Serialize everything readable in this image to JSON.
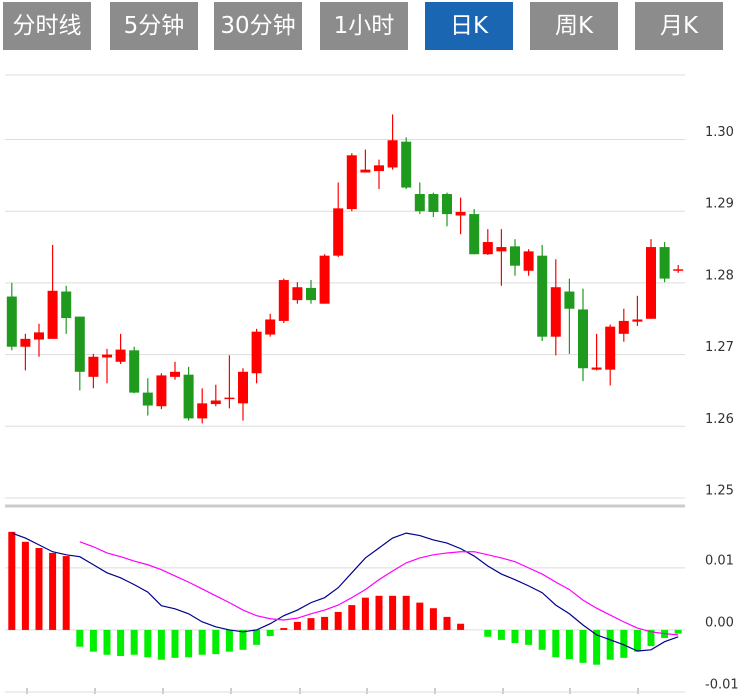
{
  "tabs": [
    "分时线",
    "5分钟",
    "30分钟",
    "1小时",
    "日K",
    "周K",
    "月K"
  ],
  "active_tab": 4,
  "chart_data": [
    {
      "type": "candlestick",
      "up_color": "#ff0000",
      "down_color": "#1f9a1f",
      "open": [
        1.2781,
        1.2711,
        1.2721,
        1.2722,
        1.2788,
        1.2753,
        1.2669,
        1.2696,
        1.269,
        1.2706,
        1.2647,
        1.2628,
        1.2669,
        1.2672,
        1.2611,
        1.2631,
        1.2638,
        1.2632,
        1.2674,
        1.2728,
        1.2747,
        1.2776,
        1.2793,
        1.2771,
        1.2838,
        1.2903,
        1.2954,
        1.2956,
        1.2961,
        1.2997,
        1.2924,
        1.2924,
        1.2924,
        1.2894,
        1.2896,
        1.284,
        1.2844,
        1.2851,
        1.2817,
        1.2838,
        1.2725,
        1.2788,
        1.2763,
        1.2679,
        1.2679,
        1.2729,
        1.2746,
        1.275,
        1.285,
        1.2817
      ],
      "high": [
        1.28,
        1.2729,
        1.2743,
        1.2853,
        1.2796,
        1.2753,
        1.2701,
        1.2708,
        1.2729,
        1.2711,
        1.2667,
        1.2674,
        1.269,
        1.2683,
        1.2653,
        1.2658,
        1.2699,
        1.2681,
        1.2736,
        1.2757,
        1.2806,
        1.2801,
        1.2804,
        1.284,
        1.294,
        1.2981,
        1.2986,
        1.2972,
        1.3035,
        1.3003,
        1.294,
        1.2926,
        1.2926,
        1.2919,
        1.2903,
        1.2875,
        1.2875,
        1.2861,
        1.2847,
        1.2853,
        1.2833,
        1.2806,
        1.2792,
        1.2729,
        1.2742,
        1.2764,
        1.2782,
        1.2861,
        1.2857,
        1.2825
      ],
      "low": [
        1.2706,
        1.2678,
        1.2697,
        1.2722,
        1.2729,
        1.265,
        1.2653,
        1.266,
        1.2687,
        1.2646,
        1.2615,
        1.2624,
        1.2665,
        1.2608,
        1.2604,
        1.2628,
        1.2625,
        1.2608,
        1.266,
        1.2725,
        1.2744,
        1.2771,
        1.2771,
        1.2771,
        1.2836,
        1.29,
        1.2954,
        1.2931,
        1.2958,
        1.2931,
        1.2896,
        1.2892,
        1.2879,
        1.2868,
        1.284,
        1.2839,
        1.2796,
        1.281,
        1.281,
        1.2719,
        1.2699,
        1.2701,
        1.2663,
        1.2678,
        1.2657,
        1.2718,
        1.274,
        1.275,
        1.2801,
        1.2814
      ],
      "close": [
        1.2711,
        1.2722,
        1.2731,
        1.2789,
        1.2751,
        1.2676,
        1.2697,
        1.27,
        1.2707,
        1.2647,
        1.2629,
        1.2671,
        1.2676,
        1.2611,
        1.2632,
        1.2636,
        1.264,
        1.2676,
        1.2732,
        1.2749,
        1.2804,
        1.2794,
        1.2776,
        1.2838,
        1.2904,
        1.2978,
        1.2958,
        1.2964,
        1.2999,
        1.2933,
        1.29,
        1.2899,
        1.2896,
        1.2899,
        1.284,
        1.2857,
        1.285,
        1.2824,
        1.2844,
        1.2725,
        1.2794,
        1.2764,
        1.2681,
        1.2682,
        1.2739,
        1.2747,
        1.2749,
        1.285,
        1.2806,
        1.2819
      ],
      "ylim": [
        1.25,
        1.309
      ],
      "yticks": [
        {
          "value": 1.3,
          "label": "1.30"
        },
        1.29,
        1.28,
        1.27,
        1.26,
        1.25
      ],
      "grid": true
    },
    {
      "type": "macd",
      "up_color": "#ff0000",
      "down_color": "#00ee00",
      "values": [
        0.0158,
        0.0142,
        0.0132,
        0.0124,
        0.0119,
        -0.0027,
        -0.0035,
        -0.004,
        -0.0042,
        -0.004,
        -0.0044,
        -0.0048,
        -0.0045,
        -0.0044,
        -0.004,
        -0.0039,
        -0.0035,
        -0.0032,
        -0.0024,
        -0.001,
        0.0003,
        0.0013,
        0.0019,
        0.0021,
        0.0029,
        0.004,
        0.0052,
        0.0055,
        0.0055,
        0.0055,
        0.0044,
        0.0035,
        0.0021,
        0.001,
        0,
        -0.0011,
        -0.0016,
        -0.0021,
        -0.0024,
        -0.0032,
        -0.0044,
        -0.0047,
        -0.0053,
        -0.0056,
        -0.0048,
        -0.0045,
        -0.0035,
        -0.0026,
        -0.0013,
        -0.0006
      ],
      "series": [
        {
          "color": "#00008c",
          "values": [
            0.0156,
            0.0148,
            0.0137,
            0.0126,
            0.0121,
            0.0118,
            0.0105,
            0.0092,
            0.0084,
            0.0073,
            0.0061,
            0.0039,
            0.0034,
            0.0026,
            0.0013,
            0.0005,
            0,
            -0.0003,
            0,
            0.001,
            0.0023,
            0.0032,
            0.0044,
            0.0052,
            0.0068,
            0.0092,
            0.0116,
            0.0132,
            0.0148,
            0.0156,
            0.0152,
            0.0145,
            0.014,
            0.0131,
            0.0119,
            0.0103,
            0.009,
            0.0081,
            0.0071,
            0.006,
            0.004,
            0.0026,
            0.0008,
            -0.0008,
            -0.0016,
            -0.0024,
            -0.0034,
            -0.0032,
            -0.0019,
            -0.0011
          ]
        },
        {
          "color": "#ff00ff",
          "values": [
            null,
            null,
            null,
            null,
            null,
            0.0142,
            0.0134,
            0.0124,
            0.0118,
            0.0111,
            0.0105,
            0.0097,
            0.0087,
            0.0077,
            0.0066,
            0.0055,
            0.0044,
            0.0032,
            0.0023,
            0.0018,
            0.0016,
            0.0019,
            0.0026,
            0.0032,
            0.004,
            0.0052,
            0.0065,
            0.0081,
            0.0095,
            0.0108,
            0.0116,
            0.0121,
            0.0124,
            0.0126,
            0.0126,
            0.0121,
            0.0116,
            0.011,
            0.01,
            0.009,
            0.0077,
            0.0065,
            0.0048,
            0.0035,
            0.0024,
            0.0013,
            0.0003,
            -0.0003,
            -0.0006,
            -0.0008
          ]
        }
      ],
      "ylim": [
        -0.01,
        0.019
      ],
      "yticks": [
        0.01,
        {
          "value": 0,
          "label": "0.00"
        },
        -0.01
      ],
      "grid": true
    }
  ]
}
